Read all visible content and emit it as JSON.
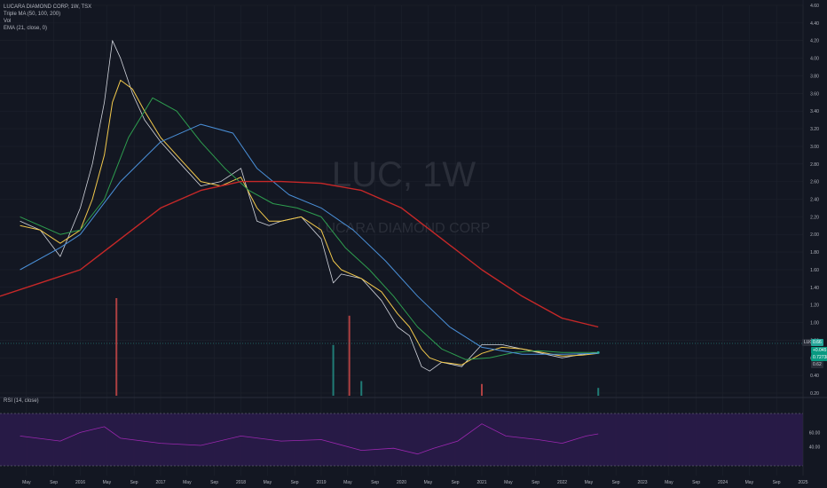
{
  "legend": {
    "symbol": "LUCARA DIAMOND CORP, 1W, TSX",
    "triple_ma": "Triple MA (50, 100, 200)",
    "vol": "Vol",
    "ema": "EMA (21, close, 0)",
    "rsi": "RSI (14, close)"
  },
  "watermark": {
    "ticker": "LUC, 1W",
    "name": "LUCARA DIAMOND CORP"
  },
  "price_axis": {
    "ticks": [
      "0.20",
      "0.40",
      "0.60",
      "0.80",
      "1.00",
      "1.20",
      "1.40",
      "1.60",
      "1.80",
      "2.00",
      "2.20",
      "2.40",
      "2.60",
      "2.80",
      "3.00",
      "3.20",
      "3.40",
      "3.60",
      "3.80",
      "4.00",
      "4.20",
      "4.40",
      "4.60"
    ]
  },
  "rsi_axis": {
    "ticks": [
      "60.00",
      "40.00"
    ]
  },
  "tags": {
    "ticker": "LUC",
    "price": "0.66",
    "change": "+0.045",
    "value3": "0.72738",
    "value4": "0.62"
  },
  "time_axis": {
    "labels": [
      "May",
      "Sep",
      "2016",
      "May",
      "Sep",
      "2017",
      "May",
      "Sep",
      "2018",
      "May",
      "Sep",
      "2019",
      "May",
      "Sep",
      "2020",
      "May",
      "Sep",
      "2021",
      "May",
      "Sep",
      "2022",
      "May",
      "Sep",
      "2023",
      "May",
      "Sep",
      "2024",
      "May",
      "Sep",
      "2025"
    ]
  },
  "colors": {
    "background": "#131722",
    "up": "#26a69a",
    "down": "#ef5350",
    "ema21": "#f2c94c",
    "ma50": "#2e9e4f",
    "ma100": "#4a90d9",
    "ma200": "#c62828",
    "rsi": "#9c27b0"
  },
  "chart_data": {
    "type": "candlestick",
    "series": [
      {
        "name": "LUC",
        "x": [
          2015.25,
          2015.5,
          2015.75,
          2016.0,
          2016.15,
          2016.3,
          2016.4,
          2016.5,
          2016.65,
          2016.8,
          2017.0,
          2017.25,
          2017.5,
          2017.75,
          2018.0,
          2018.2,
          2018.35,
          2018.5,
          2018.75,
          2019.0,
          2019.15,
          2019.25,
          2019.5,
          2019.75,
          2019.95,
          2020.1,
          2020.25,
          2020.35,
          2020.5,
          2020.75,
          2021.0,
          2021.25,
          2021.5,
          2021.75,
          2022.0,
          2022.25,
          2022.45
        ],
        "values": [
          2.15,
          2.05,
          1.75,
          2.3,
          2.8,
          3.5,
          4.2,
          4.0,
          3.6,
          3.3,
          3.05,
          2.8,
          2.55,
          2.6,
          2.75,
          2.15,
          2.1,
          2.15,
          2.2,
          1.95,
          1.45,
          1.55,
          1.5,
          1.25,
          0.95,
          0.85,
          0.5,
          0.45,
          0.55,
          0.5,
          0.75,
          0.75,
          0.7,
          0.65,
          0.6,
          0.64,
          0.66
        ]
      },
      {
        "name": "EMA (21, close, 0)",
        "x": [
          2015.25,
          2015.5,
          2015.75,
          2016.0,
          2016.15,
          2016.3,
          2016.4,
          2016.5,
          2016.65,
          2016.8,
          2017.0,
          2017.25,
          2017.5,
          2017.75,
          2018.0,
          2018.2,
          2018.35,
          2018.5,
          2018.75,
          2019.0,
          2019.15,
          2019.25,
          2019.5,
          2019.75,
          2019.95,
          2020.1,
          2020.25,
          2020.35,
          2020.5,
          2020.75,
          2021.0,
          2021.25,
          2021.5,
          2021.75,
          2022.0,
          2022.25,
          2022.45
        ],
        "values": [
          2.1,
          2.05,
          1.9,
          2.05,
          2.4,
          2.9,
          3.5,
          3.75,
          3.65,
          3.4,
          3.1,
          2.85,
          2.6,
          2.55,
          2.65,
          2.3,
          2.15,
          2.15,
          2.2,
          2.05,
          1.7,
          1.6,
          1.5,
          1.35,
          1.1,
          0.95,
          0.7,
          0.6,
          0.55,
          0.52,
          0.65,
          0.72,
          0.7,
          0.66,
          0.62,
          0.63,
          0.65
        ]
      },
      {
        "name": "MA 50",
        "x": [
          2015.25,
          2015.75,
          2016.0,
          2016.3,
          2016.6,
          2016.9,
          2017.2,
          2017.5,
          2017.8,
          2018.1,
          2018.4,
          2018.7,
          2019.0,
          2019.3,
          2019.6,
          2019.9,
          2020.2,
          2020.5,
          2020.8,
          2021.1,
          2021.4,
          2021.7,
          2022.0,
          2022.45
        ],
        "values": [
          2.2,
          2.0,
          2.05,
          2.4,
          3.1,
          3.55,
          3.4,
          3.05,
          2.75,
          2.5,
          2.35,
          2.3,
          2.2,
          1.85,
          1.6,
          1.3,
          0.95,
          0.7,
          0.58,
          0.6,
          0.66,
          0.68,
          0.66,
          0.66
        ]
      },
      {
        "name": "MA 100",
        "x": [
          2015.25,
          2015.75,
          2016.0,
          2016.5,
          2017.0,
          2017.5,
          2017.9,
          2018.2,
          2018.6,
          2019.0,
          2019.4,
          2019.8,
          2020.2,
          2020.6,
          2021.0,
          2021.5,
          2022.0,
          2022.45
        ],
        "values": [
          1.6,
          1.85,
          2.0,
          2.6,
          3.05,
          3.25,
          3.15,
          2.75,
          2.45,
          2.3,
          2.05,
          1.7,
          1.3,
          0.95,
          0.72,
          0.64,
          0.64,
          0.65
        ]
      },
      {
        "name": "MA 200",
        "x": [
          2015.0,
          2015.5,
          2016.0,
          2016.5,
          2017.0,
          2017.5,
          2018.0,
          2018.5,
          2019.0,
          2019.5,
          2020.0,
          2020.5,
          2021.0,
          2021.5,
          2022.0,
          2022.45
        ],
        "values": [
          1.3,
          1.45,
          1.6,
          1.95,
          2.3,
          2.5,
          2.6,
          2.6,
          2.58,
          2.5,
          2.3,
          1.95,
          1.6,
          1.3,
          1.05,
          0.95
        ]
      }
    ],
    "volume": {
      "x": [
        2016.45,
        2019.15,
        2019.35,
        2019.5,
        2021.0,
        2022.45
      ],
      "values": [
        1.0,
        0.52,
        0.82,
        0.15,
        0.12,
        0.08
      ]
    },
    "rsi": {
      "x": [
        2015.25,
        2015.75,
        2016.0,
        2016.3,
        2016.5,
        2017.0,
        2017.5,
        2018.0,
        2018.5,
        2019.0,
        2019.5,
        2019.9,
        2020.2,
        2020.4,
        2020.7,
        2021.0,
        2021.3,
        2021.7,
        2022.0,
        2022.3,
        2022.45
      ],
      "values": [
        55,
        48,
        60,
        68,
        52,
        45,
        42,
        55,
        48,
        50,
        35,
        38,
        30,
        38,
        48,
        72,
        55,
        50,
        45,
        55,
        58
      ],
      "levels": [
        70,
        30
      ]
    },
    "ylim": [
      0.2,
      4.6
    ],
    "xlim": [
      2015.0,
      2025.0
    ],
    "grid": true
  }
}
